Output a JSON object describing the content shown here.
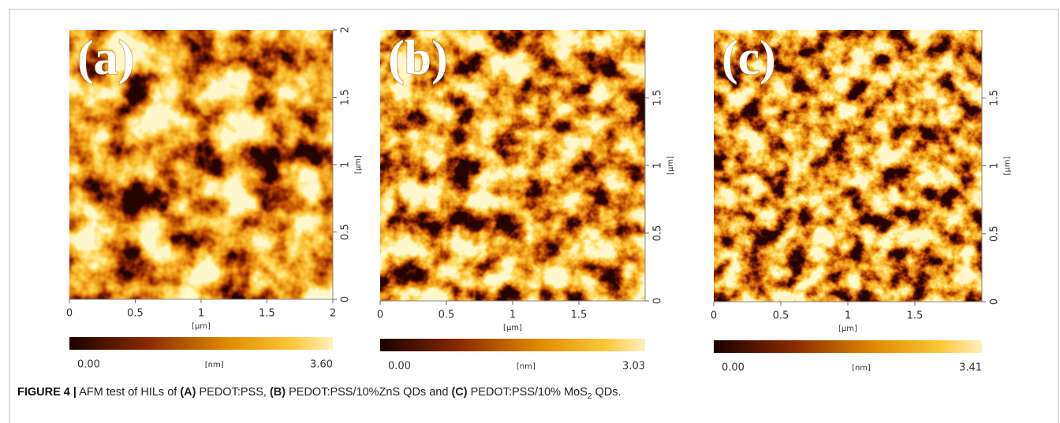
{
  "panels": [
    {
      "label": "(a)",
      "xunit": "[µm]",
      "yunit": "[µm]",
      "xlim": [
        0,
        2
      ],
      "xticks": [
        0,
        0.5,
        1,
        1.5,
        2
      ],
      "ylim": [
        0,
        2
      ],
      "yticks": [
        0,
        0.5,
        1,
        1.5,
        2
      ],
      "colorbar": {
        "unit": "[nm]",
        "min": {
          "value": 0,
          "label": "0.00"
        },
        "max": {
          "value": 3.6,
          "label": "3.60"
        }
      }
    },
    {
      "label": "(b)",
      "xunit": "[µm]",
      "yunit": "[µm]",
      "xlim": [
        0,
        2
      ],
      "xticks": [
        0,
        0.5,
        1,
        1.5
      ],
      "ylim": [
        0,
        2
      ],
      "yticks": [
        0,
        0.5,
        1,
        1.5
      ],
      "colorbar": {
        "unit": "[nm]",
        "min": {
          "value": 0,
          "label": "0.00"
        },
        "max": 3.03
      }
    },
    {
      "label": "(c)",
      "xunit": "[µm]",
      "yunit": "[µm]",
      "xlim": [
        0,
        2
      ],
      "xticks": [
        0,
        0.5,
        1,
        1.5
      ],
      "ylim": [
        0,
        2
      ],
      "yticks": [
        0,
        0.5,
        1,
        1.5
      ],
      "colorbar": {
        "unit": "[nm]",
        "min": {
          "value": 0,
          "label": "0.00"
        },
        "max": 3.41
      }
    }
  ],
  "caption": {
    "label": "FIGURE 4 |",
    "segments": [
      {
        "text": " AFM test of HILs of ",
        "style": "normal"
      },
      {
        "text": "(A)",
        "style": "bold"
      },
      {
        "text": " PEDOT:PSS, ",
        "style": "normal"
      },
      {
        "text": "(B)",
        "style": "bold"
      },
      {
        "text": " PEDOT:PSS/10%ZnS QDs and ",
        "style": "normal"
      },
      {
        "text": "(C)",
        "style": "bold"
      },
      {
        "text": " PEDOT:PSS/10% MoS",
        "style": "normal"
      },
      {
        "text": "2",
        "style": "sub"
      },
      {
        "text": " QDs.",
        "style": "normal"
      }
    ]
  }
}
